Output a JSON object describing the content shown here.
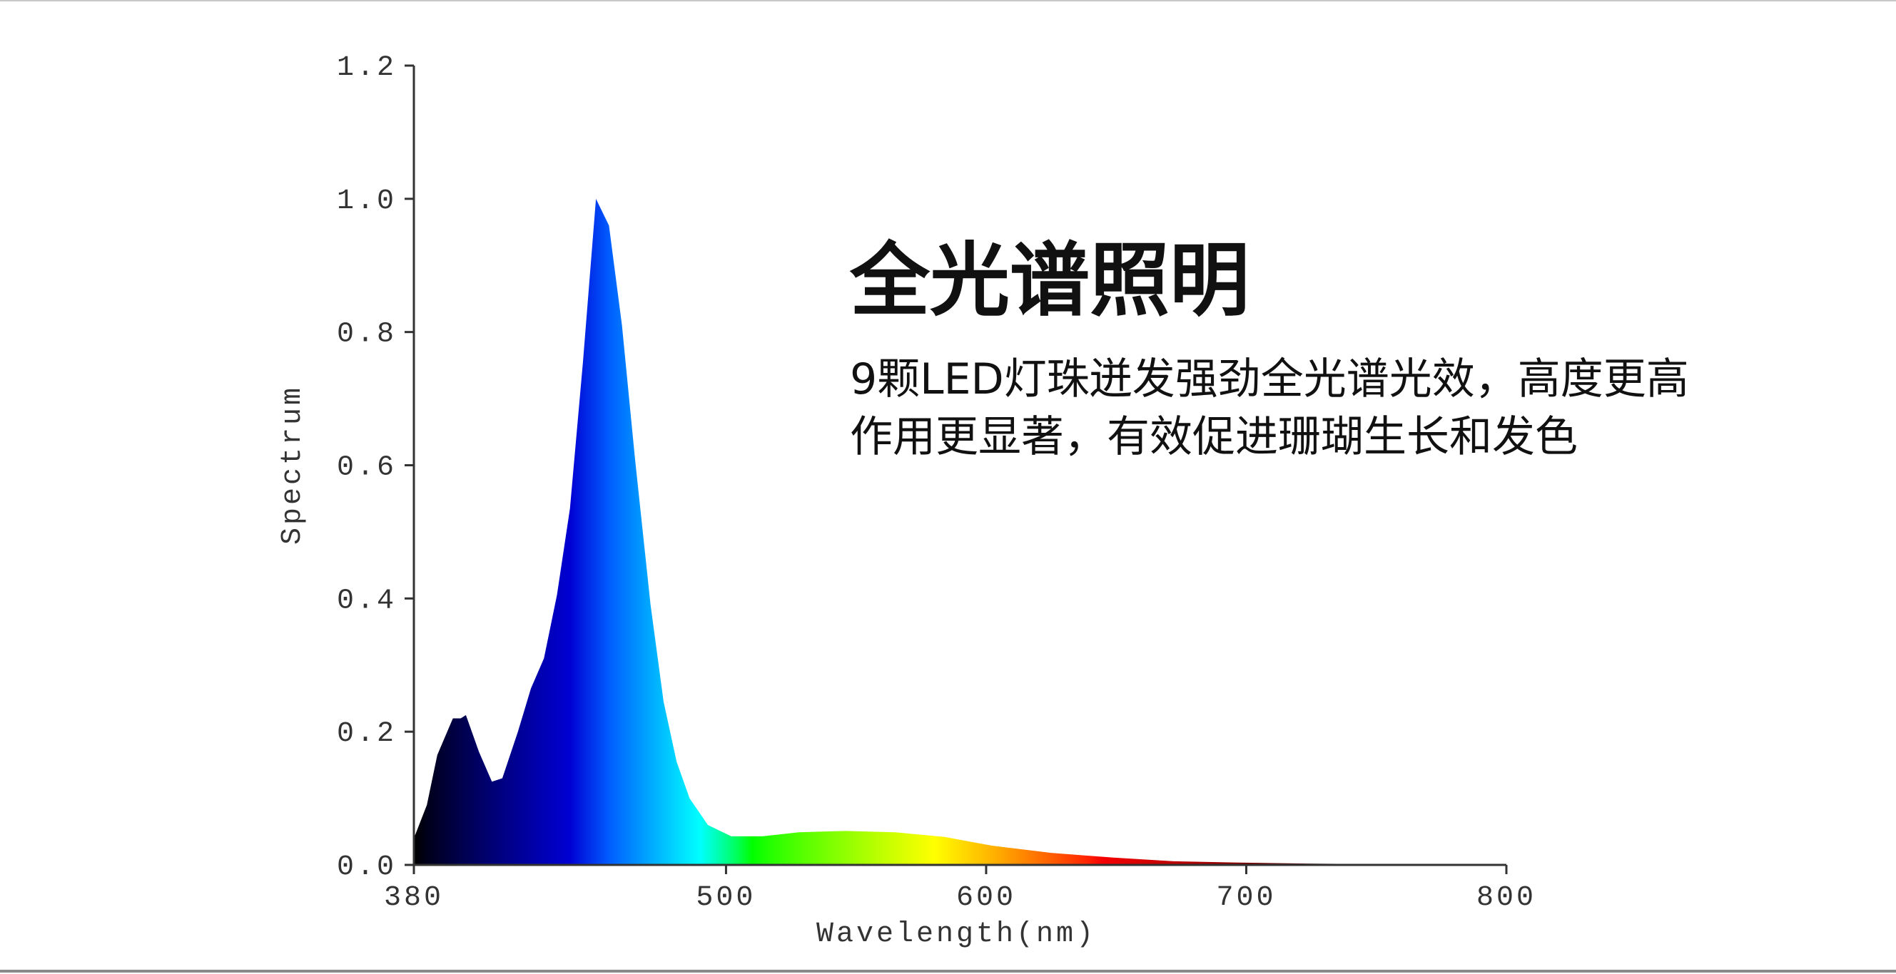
{
  "chart_data": {
    "type": "area",
    "x_label": "Wavelength(nm)",
    "y_label": "Spectrum",
    "x": [
      380,
      385,
      389,
      395,
      398,
      400,
      405,
      410,
      414,
      420,
      425,
      430,
      435,
      440,
      445,
      450,
      455,
      460,
      465,
      471,
      476,
      481,
      486,
      493,
      502,
      514,
      528,
      546,
      565,
      584,
      602,
      625,
      649,
      672,
      695,
      723,
      755,
      800
    ],
    "values": [
      0.04,
      0.09,
      0.165,
      0.22,
      0.22,
      0.225,
      0.17,
      0.125,
      0.13,
      0.2,
      0.265,
      0.31,
      0.405,
      0.535,
      0.755,
      1.0,
      0.96,
      0.81,
      0.61,
      0.39,
      0.245,
      0.155,
      0.1,
      0.06,
      0.043,
      0.043,
      0.049,
      0.051,
      0.049,
      0.042,
      0.029,
      0.018,
      0.011,
      0.0055,
      0.0036,
      0.002,
      0.001,
      0
    ],
    "xlim": [
      380,
      800
    ],
    "xticks": [
      380,
      500,
      600,
      700,
      800
    ],
    "ylim": [
      0,
      1.2
    ],
    "yticks": [
      {
        "value": 0,
        "label": "0.0"
      },
      0.2,
      0.4,
      0.6,
      0.8,
      {
        "value": 1,
        "label": "1.0"
      },
      1.2
    ],
    "grid": false
  },
  "headline": "全光谱照明",
  "description": [
    "9颗LED灯珠迸发强劲全光谱光效，高度更高",
    "作用更显著，有效促进珊瑚生长和发色"
  ]
}
